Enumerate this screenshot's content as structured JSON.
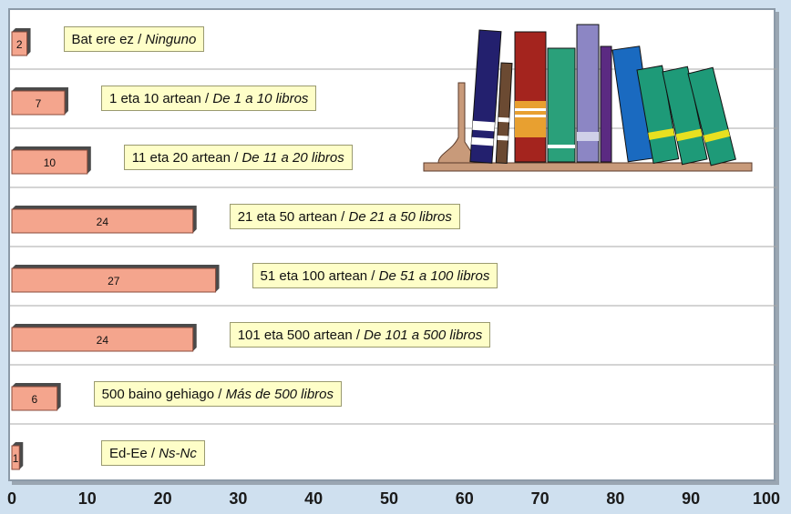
{
  "chart_data": {
    "type": "bar",
    "orientation": "horizontal",
    "categories": [
      {
        "main": "Bat ere ez / ",
        "alt": "Ninguno"
      },
      {
        "main": "1 eta 10 artean / ",
        "alt": "De 1 a 10 libros"
      },
      {
        "main": "11 eta 20 artean / ",
        "alt": "De 11 a 20 libros"
      },
      {
        "main": "21 eta 50 artean / ",
        "alt": "De 21 a 50 libros"
      },
      {
        "main": "51 eta 100 artean / ",
        "alt": "De 51 a 100 libros"
      },
      {
        "main": "101 eta 500 artean / ",
        "alt": "De 101 a 500 libros"
      },
      {
        "main": "500 baino gehiago / ",
        "alt": "Más de 500 libros"
      },
      {
        "main": "Ed-Ee  / ",
        "alt": "Ns-Nc"
      }
    ],
    "values": [
      2,
      7,
      10,
      24,
      27,
      24,
      6,
      1
    ],
    "xlim": [
      0,
      100
    ],
    "xticks": [
      "0",
      "10",
      "20",
      "30",
      "40",
      "50",
      "60",
      "70",
      "80",
      "90",
      "100"
    ],
    "grid": true,
    "colors": {
      "bar": "#f4a58d",
      "bar_edge": "#8a4a3a",
      "bar_shadow": "#4a4a4a",
      "label_bg": "#fefec8",
      "plot_bg": "#ffffff",
      "page_bg": "#cfe0ef",
      "grid": "#a8a8a8"
    },
    "decoration": "books-on-shelf-illustration"
  }
}
